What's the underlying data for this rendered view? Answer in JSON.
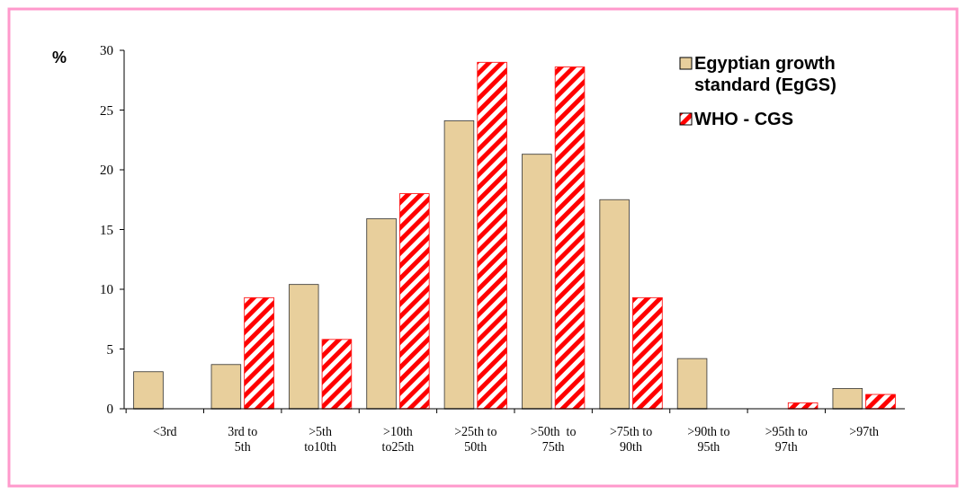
{
  "chart_data": {
    "type": "bar",
    "ylabel": "%",
    "categories": [
      "<3rd",
      "3rd to\n5th",
      ">5th\nto10th",
      ">10th\nto25th",
      ">25th to\n50th",
      ">50th  to\n75th",
      ">75th to\n90th",
      ">90th to\n95th",
      ">95th to\n97th",
      ">97th"
    ],
    "series": [
      {
        "name": "Egyptian growth standard (EgGS)",
        "color": "#e8cf9c",
        "values": [
          3.1,
          3.7,
          10.4,
          15.9,
          24.1,
          21.3,
          17.5,
          4.2,
          0,
          1.7
        ]
      },
      {
        "name": "WHO - CGS",
        "color": "#ff0000",
        "values": [
          0,
          9.3,
          5.8,
          18.0,
          29.0,
          28.6,
          9.3,
          0,
          0.5,
          1.2
        ]
      }
    ],
    "ylim": [
      0,
      30
    ],
    "yticks": [
      0,
      5,
      10,
      15,
      20,
      25,
      30
    ],
    "grid": false,
    "legend": "top right"
  }
}
